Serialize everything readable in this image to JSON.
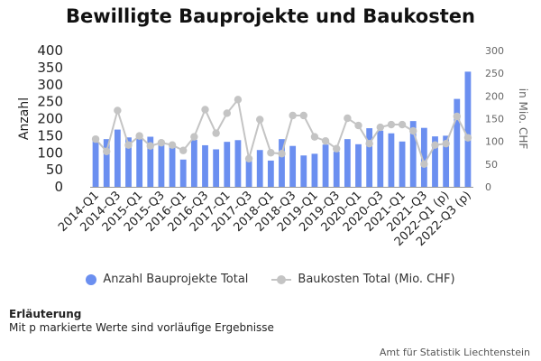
{
  "chart_data": {
    "type": "bar+line",
    "title": "Bewilligte Bauprojekte und Baukosten",
    "ylabel": "Anzahl",
    "y2label": "in Mio. CHF",
    "ylim": [
      0,
      400
    ],
    "y2lim": [
      0,
      300
    ],
    "yticks": [
      0,
      50,
      100,
      150,
      200,
      250,
      300,
      350,
      400
    ],
    "y2ticks": [
      0,
      50,
      100,
      150,
      200,
      250,
      300
    ],
    "categories": [
      "2014-Q1",
      "2014-Q2",
      "2014-Q3",
      "2014-Q4",
      "2015-Q1",
      "2015-Q2",
      "2015-Q3",
      "2015-Q4",
      "2016-Q1",
      "2016-Q2",
      "2016-Q3",
      "2016-Q4",
      "2017-Q1",
      "2017-Q2",
      "2017-Q3",
      "2017-Q4",
      "2018-Q1",
      "2018-Q2",
      "2018-Q3",
      "2018-Q4",
      "2019-Q1",
      "2019-Q2",
      "2019-Q3",
      "2019-Q4",
      "2020-Q1",
      "2020-Q2",
      "2020-Q3",
      "2020-Q4",
      "2021-Q1",
      "2021-Q2",
      "2021-Q3",
      "2021-Q4",
      "2022-Q1 (p)",
      "2022-Q2 (p)",
      "2022-Q3 (p)"
    ],
    "tick_labels": [
      "2014-Q1",
      "2014-Q3",
      "2015-Q1",
      "2015-Q3",
      "2016-Q1",
      "2016-Q3",
      "2017-Q1",
      "2017-Q3",
      "2018-Q1",
      "2018-Q3",
      "2019-Q1",
      "2019-Q3",
      "2020-Q1",
      "2020-Q3",
      "2021-Q1",
      "2021-Q3",
      "2022-Q1 (p)",
      "2022-Q3 (p)"
    ],
    "series": [
      {
        "name": "Anzahl Bauprojekte Total",
        "type": "bar",
        "axis": "left",
        "color": "#6b8ff0",
        "values": [
          138,
          140,
          168,
          145,
          145,
          147,
          136,
          118,
          80,
          138,
          122,
          110,
          132,
          137,
          80,
          108,
          77,
          140,
          120,
          92,
          97,
          124,
          103,
          140,
          125,
          172,
          165,
          157,
          133,
          193,
          173,
          148,
          150,
          258,
          338
        ]
      },
      {
        "name": "Baukosten Total (Mio. CHF)",
        "type": "line",
        "axis": "right",
        "color": "#c4c4c4",
        "values": [
          105,
          78,
          168,
          92,
          112,
          90,
          97,
          92,
          80,
          110,
          170,
          118,
          162,
          192,
          62,
          148,
          75,
          73,
          157,
          157,
          110,
          101,
          84,
          151,
          135,
          95,
          131,
          137,
          137,
          123,
          50,
          92,
          95,
          155,
          108
        ]
      }
    ],
    "legend_position": "bottom",
    "grid": false
  },
  "note": {
    "heading": "Erläuterung",
    "text": "Mit p markierte Werte sind vorläufige Ergebnisse"
  },
  "source": "Amt für Statistik Liechtenstein"
}
